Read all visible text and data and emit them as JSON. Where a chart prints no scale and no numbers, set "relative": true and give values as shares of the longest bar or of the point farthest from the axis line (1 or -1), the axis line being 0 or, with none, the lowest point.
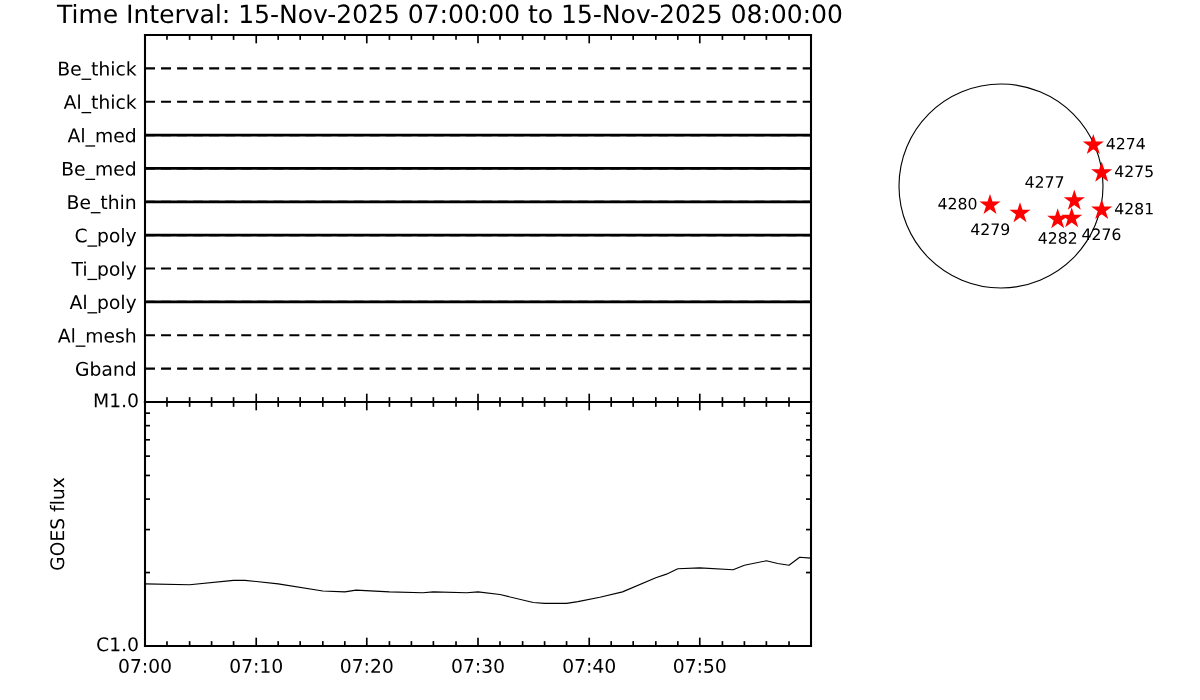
{
  "chart_data": [
    {
      "type": "bar",
      "orientation": "horizontal",
      "title": "Time Interval: 15-Nov-2025 07:00:00 to 15-Nov-2025 08:00:00",
      "categories": [
        "Be_thick",
        "Al_thick",
        "Al_med",
        "Be_med",
        "Be_thin",
        "C_poly",
        "Ti_poly",
        "Al_poly",
        "Al_mesh",
        "Gband"
      ],
      "base": [
        null,
        null,
        7,
        7,
        7,
        7,
        null,
        7,
        null,
        null
      ],
      "values": [
        null,
        null,
        1,
        1,
        1,
        1,
        null,
        1,
        null,
        null
      ],
      "color": "#000000",
      "xlim": [
        7,
        8
      ],
      "xticks": [
        {
          "value": 7,
          "label": null
        },
        {
          "value": 7.033,
          "label": null
        },
        {
          "value": 7.067,
          "label": null
        },
        {
          "value": 7.1,
          "label": null
        },
        {
          "value": 7.133,
          "label": null
        },
        {
          "value": 7.167,
          "label": null
        },
        {
          "value": 7.2,
          "label": null
        },
        {
          "value": 7.233,
          "label": null
        },
        {
          "value": 7.267,
          "label": null
        },
        {
          "value": 7.3,
          "label": null
        },
        {
          "value": 7.333,
          "label": null
        },
        {
          "value": 7.367,
          "label": null
        },
        {
          "value": 7.4,
          "label": null
        },
        {
          "value": 7.433,
          "label": null
        },
        {
          "value": 7.467,
          "label": null
        },
        {
          "value": 7.5,
          "label": null
        },
        {
          "value": 7.533,
          "label": null
        },
        {
          "value": 7.567,
          "label": null
        },
        {
          "value": 7.6,
          "label": null
        },
        {
          "value": 7.633,
          "label": null
        },
        {
          "value": 7.667,
          "label": null
        },
        {
          "value": 7.7,
          "label": null
        },
        {
          "value": 7.733,
          "label": null
        },
        {
          "value": 7.767,
          "label": null
        },
        {
          "value": 7.8,
          "label": null
        },
        {
          "value": 7.833,
          "label": null
        },
        {
          "value": 7.867,
          "label": null
        },
        {
          "value": 7.9,
          "label": null
        },
        {
          "value": 7.933,
          "label": null
        },
        {
          "value": 7.967,
          "label": null
        }
      ],
      "tick_labels": "y",
      "grid": "y"
    },
    {
      "type": "line",
      "ylabel": "GOES flux",
      "relative": true,
      "xlim": [
        7,
        8
      ],
      "xticks": [
        {
          "value": 7,
          "label": "07:00"
        },
        {
          "value": 7.033,
          "label": null
        },
        {
          "value": 7.067,
          "label": null
        },
        {
          "value": 7.1,
          "label": null
        },
        {
          "value": 7.133,
          "label": null
        },
        {
          "value": 7.167,
          "label": "07:10"
        },
        {
          "value": 7.2,
          "label": null
        },
        {
          "value": 7.233,
          "label": null
        },
        {
          "value": 7.267,
          "label": null
        },
        {
          "value": 7.3,
          "label": null
        },
        {
          "value": 7.333,
          "label": "07:20"
        },
        {
          "value": 7.367,
          "label": null
        },
        {
          "value": 7.4,
          "label": null
        },
        {
          "value": 7.433,
          "label": null
        },
        {
          "value": 7.467,
          "label": null
        },
        {
          "value": 7.5,
          "label": "07:30"
        },
        {
          "value": 7.533,
          "label": null
        },
        {
          "value": 7.567,
          "label": null
        },
        {
          "value": 7.6,
          "label": null
        },
        {
          "value": 7.633,
          "label": null
        },
        {
          "value": 7.667,
          "label": "07:40"
        },
        {
          "value": 7.7,
          "label": null
        },
        {
          "value": 7.733,
          "label": null
        },
        {
          "value": 7.767,
          "label": null
        },
        {
          "value": 7.8,
          "label": null
        },
        {
          "value": 7.833,
          "label": "07:50"
        },
        {
          "value": 7.867,
          "label": null
        },
        {
          "value": 7.9,
          "label": null
        },
        {
          "value": 7.933,
          "label": null
        },
        {
          "value": 7.967,
          "label": null
        }
      ],
      "series": [
        {
          "color": "#000000",
          "x": [
            7,
            7.067,
            7.133,
            7.15,
            7.2,
            7.267,
            7.3,
            7.317,
            7.367,
            7.417,
            7.433,
            7.483,
            7.5,
            7.533,
            7.583,
            7.6,
            7.633,
            7.65,
            7.683,
            7.717,
            7.767,
            7.783,
            7.8,
            7.833,
            7.883,
            7.9,
            7.933,
            7.95,
            7.967,
            7.983,
            8
          ],
          "values": [
            0.7,
            0.69,
            0.74,
            0.74,
            0.7,
            0.62,
            0.61,
            0.63,
            0.61,
            0.6,
            0.61,
            0.6,
            0.61,
            0.58,
            0.49,
            0.48,
            0.48,
            0.5,
            0.55,
            0.61,
            0.77,
            0.81,
            0.87,
            0.88,
            0.86,
            0.91,
            0.96,
            0.93,
            0.91,
            1.0,
            0.99
          ]
        }
      ],
      "annotations": [
        "C1.0",
        "M1.0"
      ]
    },
    {
      "type": "other",
      "annotations": [
        "4274",
        "4275",
        "4276",
        "4277",
        "4279",
        "4280",
        "4281",
        "4282"
      ]
    }
  ]
}
